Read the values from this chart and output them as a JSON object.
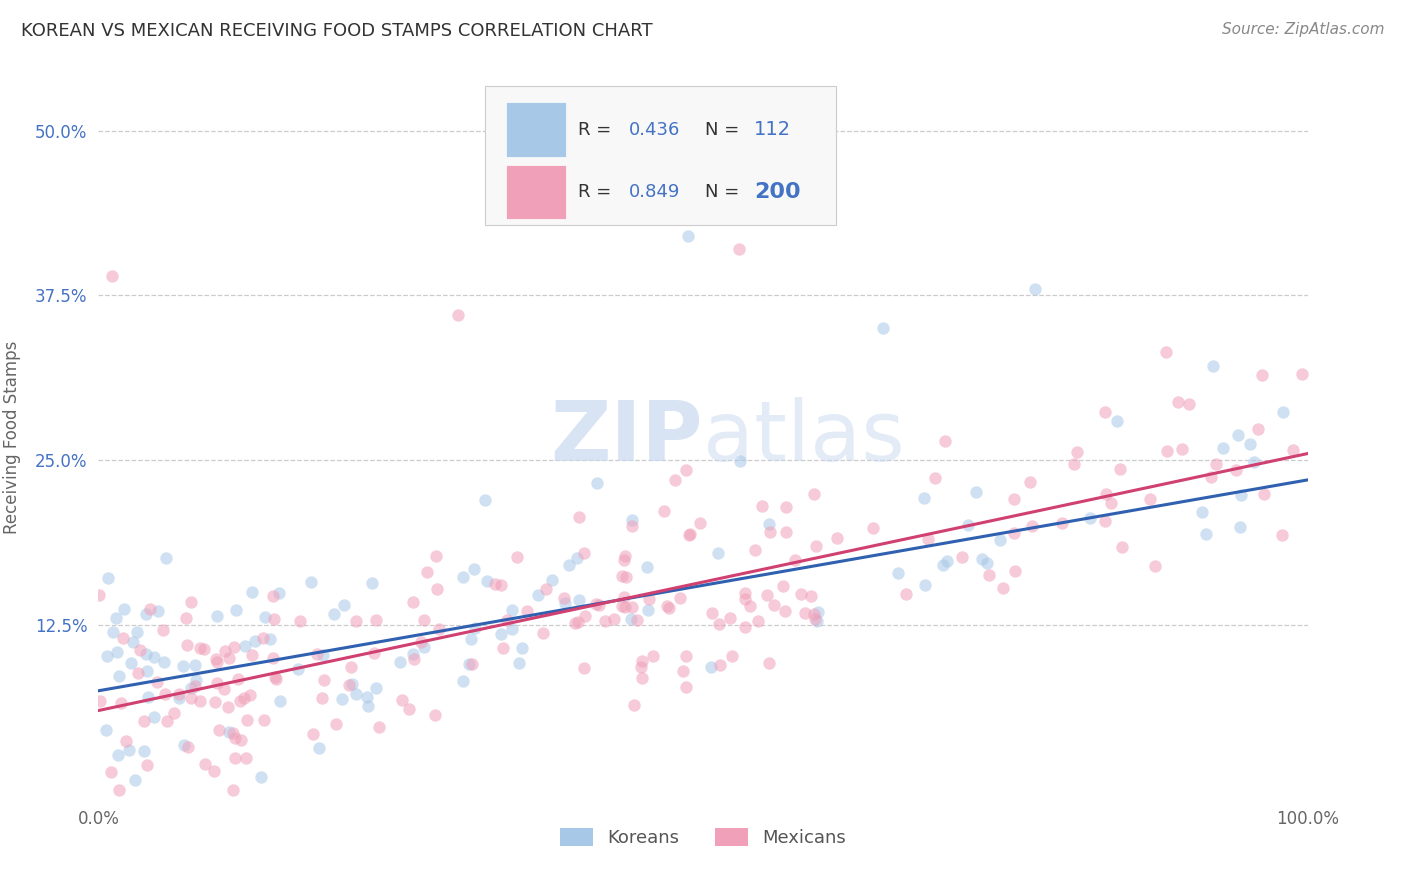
{
  "title": "KOREAN VS MEXICAN RECEIVING FOOD STAMPS CORRELATION CHART",
  "source_text": "Source: ZipAtlas.com",
  "ylabel": "Receiving Food Stamps",
  "xlabel": "",
  "xlim": [
    0.0,
    1.0
  ],
  "ylim": [
    -0.01,
    0.545
  ],
  "xtick_labels": [
    "0.0%",
    "100.0%"
  ],
  "ytick_labels": [
    "12.5%",
    "25.0%",
    "37.5%",
    "50.0%"
  ],
  "ytick_values": [
    0.125,
    0.25,
    0.375,
    0.5
  ],
  "watermark_zip": "ZIP",
  "watermark_atlas": "atlas",
  "korean_color": "#a8c8e8",
  "mexican_color": "#f0a0b8",
  "korean_edge_color": "#a8c8e8",
  "mexican_edge_color": "#f0a0b8",
  "korean_line_color": "#3060b0",
  "mexican_line_color": "#d04070",
  "title_color": "#333333",
  "grid_color": "#cccccc",
  "label_color": "#4472c4",
  "background_color": "#ffffff",
  "korean_R": 0.436,
  "korean_N": 112,
  "mexican_R": 0.849,
  "mexican_N": 200,
  "korean_slope": 0.16,
  "korean_intercept": 0.075,
  "mexican_slope": 0.195,
  "mexican_intercept": 0.06,
  "point_size": 80,
  "point_alpha": 0.55
}
